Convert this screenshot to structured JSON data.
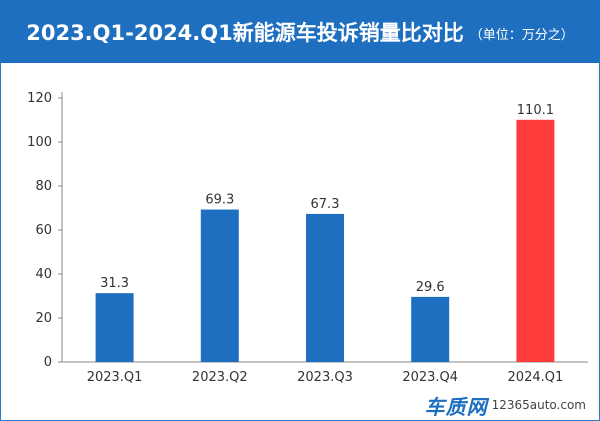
{
  "header": {
    "title": "2023.Q1-2024.Q1新能源车投诉销量比对比",
    "unit": "（单位：万分之）"
  },
  "watermark": {
    "logo": "车质网",
    "url": "12365auto.com"
  },
  "colors": {
    "header_bg": "#1e6fc0",
    "bar_default": "#1e6fc0",
    "bar_highlight": "#ff3b3b",
    "axis": "#888888"
  },
  "chart_data": {
    "type": "bar",
    "categories": [
      "2023.Q1",
      "2023.Q2",
      "2023.Q3",
      "2023.Q4",
      "2024.Q1"
    ],
    "values": [
      31.3,
      69.3,
      67.3,
      29.6,
      110.1
    ],
    "value_labels": [
      "31.3",
      "69.3",
      "67.3",
      "29.6",
      "110.1"
    ],
    "highlight_index": 4,
    "ylim": [
      0,
      120
    ],
    "yticks": [
      0,
      20,
      40,
      60,
      80,
      100,
      120
    ],
    "grid": false,
    "legend": "none"
  }
}
